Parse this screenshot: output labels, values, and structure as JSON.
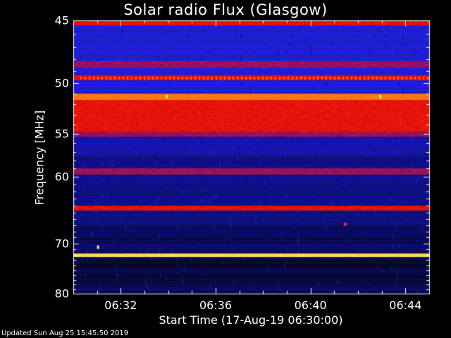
{
  "chart_data": {
    "type": "heatmap",
    "title": "Solar radio Flux (Glasgow)",
    "ylabel": "Frequency [MHz]",
    "xlabel": "Start Time (17-Aug-19 06:30:00)",
    "y_ticks": [
      "45",
      "50",
      "55",
      "60",
      "70",
      "80"
    ],
    "y_tick_values": [
      45,
      50,
      55,
      60,
      70,
      80
    ],
    "x_ticks": [
      "06:32",
      "06:36",
      "06:40",
      "06:44"
    ],
    "x_tick_minutes": [
      2,
      6,
      10,
      14
    ],
    "xlim_minutes": [
      0,
      15
    ],
    "ylim_mhz": [
      45,
      80
    ],
    "y_scale": "reciprocal (frequency decreasing downward, compressed at high end)",
    "colormap": [
      "#000033",
      "#0000aa",
      "#2a2aff",
      "#8a1a6a",
      "#cc0000",
      "#ff2a00",
      "#ffdd44"
    ],
    "bands": [
      {
        "from_mhz": 45.0,
        "to_mhz": 45.3,
        "level": "red"
      },
      {
        "from_mhz": 48.2,
        "to_mhz": 48.6,
        "level": "dark-red"
      },
      {
        "from_mhz": 49.4,
        "to_mhz": 49.7,
        "level": "red"
      },
      {
        "from_mhz": 51.0,
        "to_mhz": 51.6,
        "level": "orange"
      },
      {
        "from_mhz": 51.6,
        "to_mhz": 54.8,
        "level": "red"
      },
      {
        "from_mhz": 54.8,
        "to_mhz": 55.2,
        "level": "dark-red"
      },
      {
        "from_mhz": 59.0,
        "to_mhz": 59.6,
        "level": "dark-red"
      },
      {
        "from_mhz": 64.0,
        "to_mhz": 64.5,
        "level": "red"
      },
      {
        "from_mhz": 71.8,
        "to_mhz": 72.2,
        "level": "yellow"
      }
    ]
  },
  "footer": {
    "updated": "Updated Sun Aug 25 15:45:50 2019"
  },
  "colors": {
    "background": "#000000",
    "axis": "#ffffff"
  }
}
